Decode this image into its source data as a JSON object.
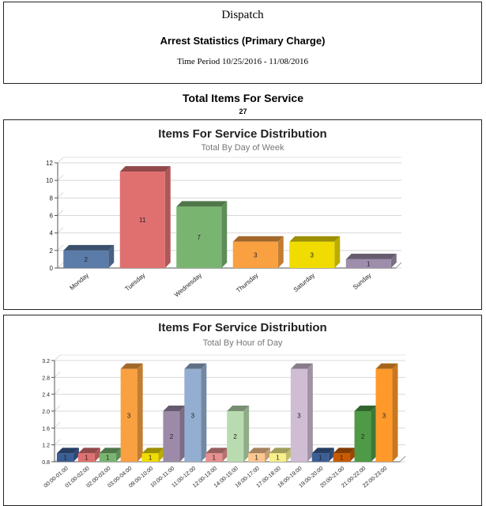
{
  "header": {
    "title": "Dispatch",
    "subtitle": "Arrest Statistics (Primary Charge)",
    "period": "Time Period 10/25/2016 - 11/08/2016"
  },
  "total": {
    "label": "Total Items For Service",
    "value": "27"
  },
  "chart_data": [
    {
      "type": "bar",
      "title": "Items For Service Distribution",
      "subtitle": "Total By Day of Week",
      "xlabel": "",
      "ylabel": "",
      "ylim": [
        0,
        12
      ],
      "yticks": [
        "0",
        "2",
        "4",
        "6",
        "8",
        "10",
        "12"
      ],
      "categories": [
        "Monday",
        "Tuesday",
        "Wednesday",
        "Thursday",
        "Saturday",
        "Sunday"
      ],
      "values": [
        2,
        11,
        7,
        3,
        3,
        1
      ],
      "colors": [
        "#5b7ba8",
        "#e07070",
        "#79b571",
        "#f9a040",
        "#f0dc00",
        "#9e8eac"
      ],
      "grid": true,
      "legend": "none"
    },
    {
      "type": "bar",
      "title": "Items For Service Distribution",
      "subtitle": "Total By Hour of Day",
      "xlabel": "",
      "ylabel": "",
      "ylim": [
        0.8,
        3.2
      ],
      "yticks": [
        "0.8",
        "1.2",
        "1.6",
        "2.0",
        "2.4",
        "2.8",
        "3.2"
      ],
      "categories": [
        "00:00-01:00",
        "01:00-02:00",
        "02:00-03:00",
        "03:00-04:00",
        "09:00-10:00",
        "10:00-11:00",
        "11:00-12:00",
        "12:00-13:00",
        "14:00-15:00",
        "16:00-17:00",
        "17:00-18:00",
        "18:00-19:00",
        "19:00-20:00",
        "20:00-21:00",
        "21:00-22:00",
        "22:00-23:00"
      ],
      "values": [
        1,
        1,
        1,
        3,
        1,
        2,
        3,
        1,
        2,
        1,
        1,
        3,
        1,
        1,
        2,
        3
      ],
      "colors": [
        "#3b5e95",
        "#e07070",
        "#79b571",
        "#f9a040",
        "#f0dc00",
        "#9c8aa8",
        "#93aed0",
        "#e89090",
        "#b9dbb0",
        "#fcc890",
        "#f8f08a",
        "#cfbdd4",
        "#3b5e95",
        "#c85a00",
        "#4e9a46",
        "#ff9a2a"
      ],
      "grid": true,
      "legend": "none"
    }
  ]
}
